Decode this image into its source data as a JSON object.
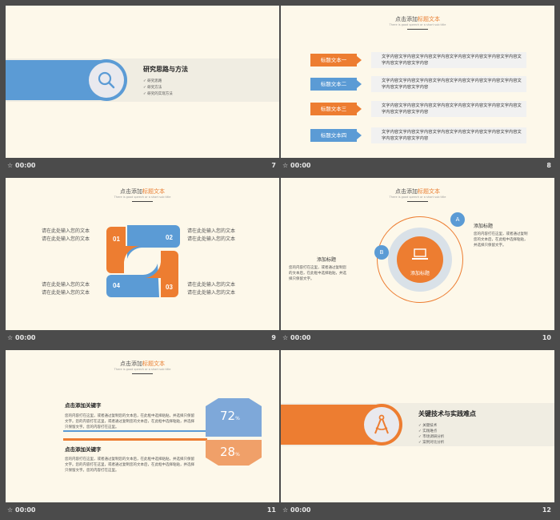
{
  "slides": [
    {
      "num": "7",
      "time": "00:00",
      "title": "研究思路与方法",
      "items": [
        "研究思路",
        "研究方法",
        "研究的实现方法"
      ]
    },
    {
      "num": "8",
      "time": "00:00",
      "header_pre": "点击添加",
      "header_hl": "标题文本",
      "subtitle": "There is good speech or a short sub title",
      "rows": [
        {
          "label": "标题文本一",
          "text": "文字内容文字内容文字内容文字内容文字内容文字内容文字内容文字内容文字内容文字内容文字内容"
        },
        {
          "label": "标题文本二",
          "text": "文字内容文字内容文字内容文字内容文字内容文字内容文字内容文字内容文字内容文字内容文字内容"
        },
        {
          "label": "标题文本三",
          "text": "文字内容文字内容文字内容文字内容文字内容文字内容文字内容文字内容文字内容文字内容文字内容"
        },
        {
          "label": "标题文本四",
          "text": "文字内容文字内容文字内容文字内容文字内容文字内容文字内容文字内容文字内容文字内容文字内容"
        }
      ]
    },
    {
      "num": "9",
      "time": "00:00",
      "header_pre": "点击添加",
      "header_hl": "标题文本",
      "subtitle": "There is good speech or a short sub title",
      "numbers": [
        "01",
        "02",
        "03",
        "04"
      ],
      "text_line": "请在此处输入您的文本"
    },
    {
      "num": "10",
      "time": "00:00",
      "header_pre": "点击添加",
      "header_hl": "标题文本",
      "subtitle": "There is good speech or a short sub title",
      "center": "添加标题",
      "a": "A",
      "b": "B",
      "heading": "添加标题",
      "body": "您的内容打在这里，或者通过复制您的文本后，在此框中选择粘贴，并选择只保留文字。"
    },
    {
      "num": "11",
      "time": "00:00",
      "header_pre": "点击添加",
      "header_hl": "标题文本",
      "subtitle": "There is good speech or a short sub title",
      "heading": "点击添加关键字",
      "body": "您的内容打在这里，或者通过复制您的文本后，在此框中选择粘贴，并选择只保留文字。您的内容打在这里，或者通过复制您的文本后，在此框中选择粘贴，并选择只保留文字。您的内容打在这里。",
      "pct1": "72",
      "pct2": "28",
      "unit": "%"
    },
    {
      "num": "12",
      "time": "00:00",
      "title": "关键技术与实践难点",
      "items": [
        "关键技术",
        "实践难点",
        "市场调研分析",
        "案例对比分析"
      ]
    }
  ],
  "colors": {
    "orange": "#ed7d31",
    "blue": "#5b9bd5",
    "bg": "#fdf8ea"
  }
}
